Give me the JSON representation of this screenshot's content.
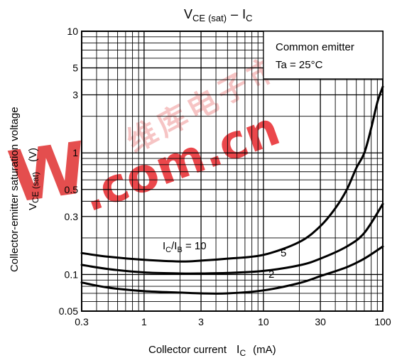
{
  "chart_data": {
    "type": "line",
    "title": {
      "main": "V",
      "sub1": "CE",
      "sub2": "(sat)",
      "dash": "–",
      "i": "I",
      "isub": "C"
    },
    "xlabel": {
      "text": "Collector current",
      "sym": "I",
      "sub": "C",
      "unit": "(mA)"
    },
    "ylabel": {
      "line1": "Collector-emitter saturation voltage",
      "sym": "V",
      "sub": "CE (sat)",
      "unit": "(V)"
    },
    "xscale": "log",
    "yscale": "log",
    "xlim": [
      0.3,
      100
    ],
    "ylim": [
      0.05,
      10
    ],
    "grid": true,
    "x_ticks": [
      "0.3",
      "1",
      "3",
      "10",
      "30",
      "100"
    ],
    "y_ticks": [
      "0.05",
      "0.1",
      "0.3",
      "0.5",
      "1",
      "3",
      "5",
      "10"
    ],
    "legend": {
      "line1": "Common emitter",
      "line2": "Ta = 25°C",
      "position": "top-right"
    },
    "series": [
      {
        "label": "5",
        "points": [
          [
            0.3,
            0.12
          ],
          [
            0.5,
            0.111
          ],
          [
            1,
            0.104
          ],
          [
            2,
            0.102
          ],
          [
            3,
            0.102
          ],
          [
            5,
            0.103
          ],
          [
            10,
            0.107
          ],
          [
            20,
            0.119
          ],
          [
            30,
            0.135
          ],
          [
            50,
            0.17
          ],
          [
            70,
            0.22
          ],
          [
            100,
            0.38
          ]
        ]
      },
      {
        "label": "2",
        "points": [
          [
            0.3,
            0.086
          ],
          [
            0.5,
            0.078
          ],
          [
            1,
            0.073
          ],
          [
            2,
            0.071
          ],
          [
            3,
            0.07
          ],
          [
            5,
            0.07
          ],
          [
            10,
            0.074
          ],
          [
            20,
            0.085
          ],
          [
            30,
            0.097
          ],
          [
            50,
            0.115
          ],
          [
            70,
            0.135
          ],
          [
            100,
            0.17
          ]
        ]
      },
      {
        "label": {
          "sym": "I",
          "sub1": "C",
          "slash": "/I",
          "sub2": "B",
          "eq": " = 10"
        },
        "points": [
          [
            0.3,
            0.15
          ],
          [
            0.5,
            0.14
          ],
          [
            1,
            0.132
          ],
          [
            2,
            0.128
          ],
          [
            3,
            0.13
          ],
          [
            5,
            0.135
          ],
          [
            10,
            0.145
          ],
          [
            20,
            0.185
          ],
          [
            30,
            0.25
          ],
          [
            40,
            0.35
          ],
          [
            50,
            0.5
          ],
          [
            60,
            0.75
          ],
          [
            70,
            1.0
          ],
          [
            80,
            1.6
          ],
          [
            90,
            2.6
          ],
          [
            100,
            3.5
          ]
        ]
      }
    ]
  },
  "watermark": {
    "cn": "维库电子市场",
    "en": ".com.cn",
    "w": "W"
  }
}
